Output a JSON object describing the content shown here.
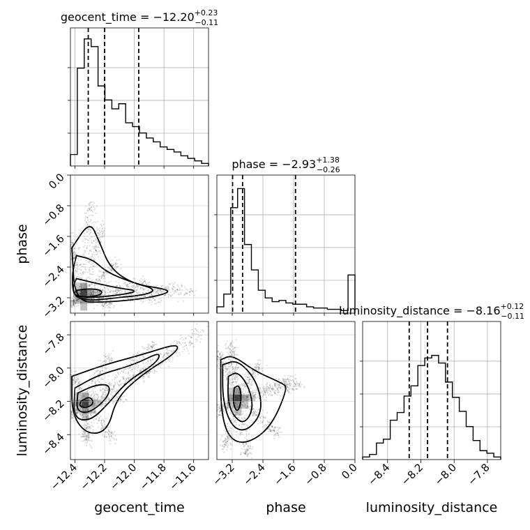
{
  "chart_data": {
    "type": "corner",
    "parameters": [
      "geocent_time",
      "phase",
      "luminosity_distance"
    ],
    "axis_labels": [
      "geocent_time",
      "phase",
      "luminosity_distance"
    ],
    "titles": [
      {
        "text": "geocent_time = ",
        "median": "−12.20",
        "plus": "+0.23",
        "minus": "−0.11"
      },
      {
        "text": "phase = ",
        "median": "−2.93",
        "plus": "+1.38",
        "minus": "−0.26"
      },
      {
        "text": "luminosity_distance = ",
        "median": "−8.16",
        "plus": "+0.12",
        "minus": "−0.11"
      }
    ],
    "ranges": [
      [
        -12.43,
        -11.5
      ],
      [
        -3.6,
        0.0
      ],
      [
        -8.55,
        -7.72
      ]
    ],
    "ticks": [
      {
        "values": [
          -12.4,
          -12.2,
          -12.0,
          -11.8,
          -11.6
        ],
        "labels": [
          "−12.4",
          "−12.2",
          "−12.0",
          "−11.8",
          "−11.6"
        ]
      },
      {
        "values": [
          -3.2,
          -2.4,
          -1.6,
          -0.8,
          0.0
        ],
        "labels": [
          "−3.2",
          "−2.4",
          "−1.6",
          "−0.8",
          "0.0"
        ]
      },
      {
        "values": [
          -8.4,
          -8.2,
          -8.0,
          -7.8
        ],
        "labels": [
          "−8.4",
          "−8.2",
          "−8.0",
          "−7.8"
        ]
      }
    ],
    "quantiles": [
      [
        -12.31,
        -12.2,
        -11.97
      ],
      [
        -3.19,
        -2.93,
        -1.55
      ],
      [
        -8.27,
        -8.16,
        -8.04
      ]
    ],
    "histograms": [
      {
        "bins": 20,
        "heights": [
          0.09,
          0.77,
          1.0,
          0.94,
          0.63,
          0.52,
          0.45,
          0.49,
          0.34,
          0.31,
          0.26,
          0.22,
          0.19,
          0.15,
          0.13,
          0.11,
          0.08,
          0.06,
          0.04,
          0.02
        ]
      },
      {
        "bins": 20,
        "heights": [
          0.05,
          0.15,
          0.83,
          0.98,
          0.54,
          0.34,
          0.18,
          0.12,
          0.09,
          0.1,
          0.08,
          0.07,
          0.07,
          0.05,
          0.04,
          0.04,
          0.03,
          0.03,
          0.02,
          0.3
        ]
      },
      {
        "bins": 20,
        "heights": [
          0.02,
          0.04,
          0.13,
          0.16,
          0.31,
          0.37,
          0.5,
          0.58,
          0.74,
          0.8,
          0.82,
          0.76,
          0.61,
          0.49,
          0.38,
          0.26,
          0.15,
          0.07,
          0.05,
          0.02
        ]
      }
    ],
    "pairs": [
      {
        "x": "geocent_time",
        "y": "phase",
        "center": [
          -12.34,
          -3.08
        ],
        "contours": [
          [
            [
              -12.38,
              -3.0
            ],
            [
              -12.3,
              -2.96
            ],
            [
              -12.22,
              -3.0
            ],
            [
              -12.22,
              -3.12
            ],
            [
              -12.3,
              -3.18
            ],
            [
              -12.38,
              -3.16
            ],
            [
              -12.41,
              -3.08
            ]
          ],
          [
            [
              -12.39,
              -2.7
            ],
            [
              -12.26,
              -2.82
            ],
            [
              -12.1,
              -2.95
            ],
            [
              -11.97,
              -3.02
            ],
            [
              -12.08,
              -3.12
            ],
            [
              -12.24,
              -3.18
            ],
            [
              -12.38,
              -3.22
            ],
            [
              -12.42,
              -3.0
            ]
          ],
          [
            [
              -12.39,
              -2.1
            ],
            [
              -12.28,
              -2.2
            ],
            [
              -12.19,
              -2.52
            ],
            [
              -12.03,
              -2.78
            ],
            [
              -11.85,
              -2.98
            ],
            [
              -11.92,
              -3.12
            ],
            [
              -12.12,
              -3.2
            ],
            [
              -12.3,
              -3.28
            ],
            [
              -12.41,
              -3.18
            ],
            [
              -12.42,
              -2.6
            ]
          ],
          [
            [
              -12.42,
              -1.9
            ],
            [
              -12.3,
              -1.2
            ],
            [
              -12.24,
              -1.7
            ],
            [
              -12.16,
              -2.45
            ],
            [
              -12.0,
              -2.85
            ],
            [
              -11.82,
              -2.95
            ],
            [
              -11.75,
              -3.05
            ],
            [
              -11.92,
              -3.22
            ],
            [
              -12.2,
              -3.32
            ],
            [
              -12.4,
              -3.3
            ]
          ]
        ]
      },
      {
        "x": "geocent_time",
        "y": "luminosity_distance",
        "center": [
          -12.33,
          -8.21
        ],
        "contours": [
          [
            [
              -12.36,
              -8.2
            ],
            [
              -12.3,
              -8.17
            ],
            [
              -12.27,
              -8.21
            ],
            [
              -12.32,
              -8.24
            ],
            [
              -12.37,
              -8.23
            ]
          ],
          [
            [
              -12.38,
              -8.15
            ],
            [
              -12.26,
              -8.1
            ],
            [
              -12.16,
              -8.1
            ],
            [
              -12.18,
              -8.18
            ],
            [
              -12.3,
              -8.27
            ],
            [
              -12.39,
              -8.26
            ]
          ],
          [
            [
              -12.4,
              -8.12
            ],
            [
              -12.24,
              -8.04
            ],
            [
              -12.0,
              -7.98
            ],
            [
              -11.82,
              -7.9
            ],
            [
              -11.85,
              -7.97
            ],
            [
              -12.05,
              -8.08
            ],
            [
              -12.18,
              -8.22
            ],
            [
              -12.3,
              -8.32
            ],
            [
              -12.41,
              -8.3
            ]
          ],
          [
            [
              -12.42,
              -8.05
            ],
            [
              -12.2,
              -7.98
            ],
            [
              -11.95,
              -7.92
            ],
            [
              -11.7,
              -7.85
            ],
            [
              -11.72,
              -7.91
            ],
            [
              -11.95,
              -8.04
            ],
            [
              -12.12,
              -8.18
            ],
            [
              -12.18,
              -8.38
            ],
            [
              -12.32,
              -8.4
            ],
            [
              -12.42,
              -8.28
            ]
          ]
        ]
      },
      {
        "x": "phase",
        "y": "luminosity_distance",
        "center": [
          -3.05,
          -8.18
        ],
        "contours": [
          [
            [
              -3.15,
              -8.12
            ],
            [
              -3.02,
              -8.1
            ],
            [
              -2.95,
              -8.18
            ],
            [
              -3.05,
              -8.27
            ],
            [
              -3.18,
              -8.22
            ]
          ],
          [
            [
              -3.3,
              -8.05
            ],
            [
              -3.05,
              -8.02
            ],
            [
              -2.75,
              -8.12
            ],
            [
              -2.65,
              -8.25
            ],
            [
              -2.9,
              -8.34
            ],
            [
              -3.2,
              -8.28
            ],
            [
              -3.32,
              -8.18
            ]
          ],
          [
            [
              -3.45,
              -7.98
            ],
            [
              -3.05,
              -7.95
            ],
            [
              -2.55,
              -8.08
            ],
            [
              -2.4,
              -8.26
            ],
            [
              -2.8,
              -8.38
            ],
            [
              -3.2,
              -8.36
            ],
            [
              -3.45,
              -8.2
            ]
          ],
          [
            [
              -3.5,
              -7.95
            ],
            [
              -3.2,
              -7.92
            ],
            [
              -2.6,
              -8.02
            ],
            [
              -1.9,
              -8.09
            ],
            [
              -1.75,
              -8.12
            ],
            [
              -2.2,
              -8.36
            ],
            [
              -2.85,
              -8.46
            ],
            [
              -3.3,
              -8.42
            ],
            [
              -3.5,
              -8.25
            ]
          ]
        ]
      }
    ]
  }
}
